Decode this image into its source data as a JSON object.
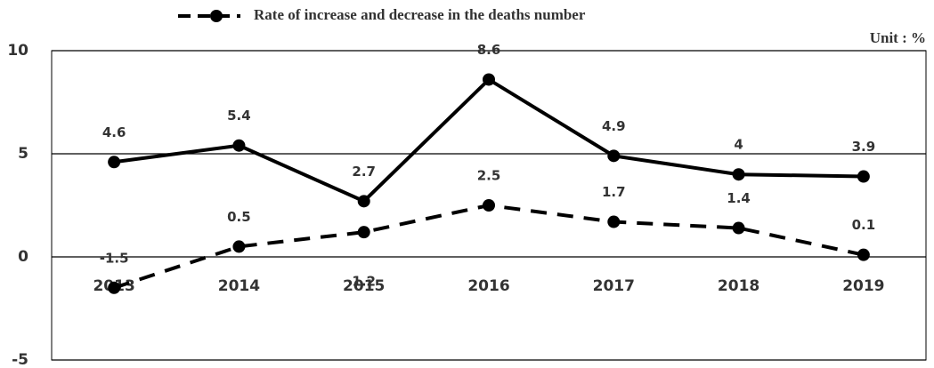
{
  "chart_data": {
    "type": "line",
    "categories": [
      "2013",
      "2014",
      "2015",
      "2016",
      "2017",
      "2018",
      "2019"
    ],
    "series": [
      {
        "color": "#000000",
        "dash": "solid",
        "values": [
          4.6,
          5.4,
          2.7,
          8.6,
          4.9,
          4,
          3.9
        ]
      },
      {
        "name": "Rate of increase and decrease in the deaths number",
        "color": "#000000",
        "dash": "dashed",
        "values": [
          -1.5,
          0.5,
          1.2,
          2.5,
          1.7,
          1.4,
          0.1
        ]
      }
    ],
    "unit_label": "Unit : %",
    "ylim": [
      -5,
      10
    ],
    "yticks": [
      -5,
      0,
      5,
      10
    ],
    "grid": true
  }
}
